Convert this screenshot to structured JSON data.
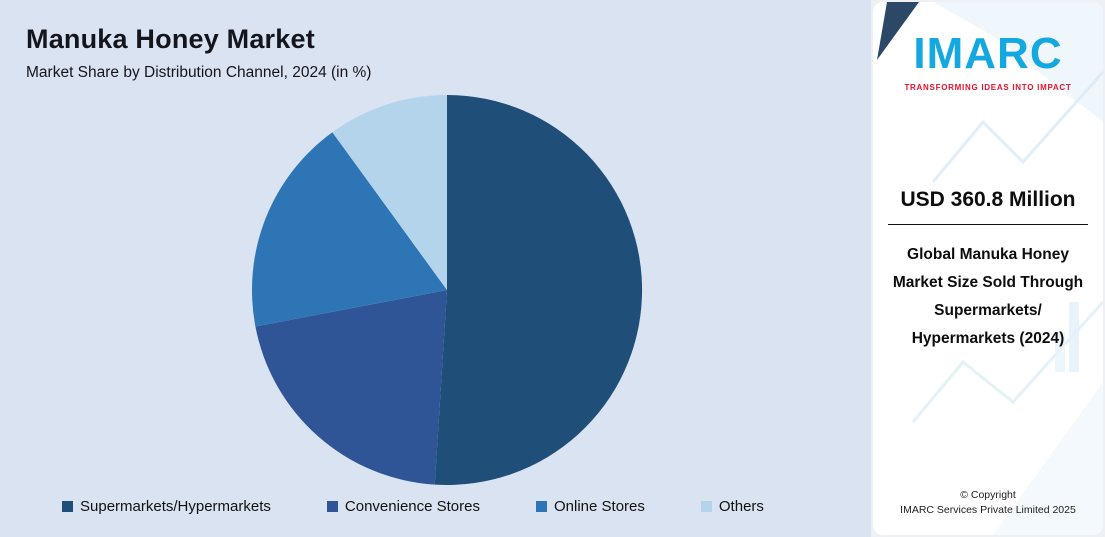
{
  "header": {
    "title": "Manuka Honey Market",
    "subtitle": "Market Share by Distribution Channel, 2024 (in %)"
  },
  "chart_data": {
    "type": "pie",
    "title": "Manuka Honey Market",
    "subtitle": "Market Share by Distribution Channel, 2024 (in %)",
    "categories": [
      "Supermarkets/Hypermarkets",
      "Convenience Stores",
      "Online Stores",
      "Others"
    ],
    "values": [
      51,
      21,
      18,
      10
    ],
    "colors": [
      "#1f4e79",
      "#2f5597",
      "#2e75b6",
      "#b4d4ec"
    ],
    "start_angle_deg": 0,
    "direction": "clockwise",
    "legend_position": "bottom",
    "data_labels": "none"
  },
  "side_panel": {
    "logo_text": "IMARC",
    "tagline": "TRANSFORMING IDEAS INTO IMPACT",
    "stat_value": "USD 360.8 Million",
    "stat_description": "Global Manuka Honey Market Size Sold Through Supermarkets/ Hypermarkets (2024)",
    "copyright_line1": "© Copyright",
    "copyright_line2": "IMARC Services Private Limited 2025",
    "brand_colors": {
      "logo_blue": "#14a8e1",
      "tagline_red": "#e8112d"
    }
  }
}
